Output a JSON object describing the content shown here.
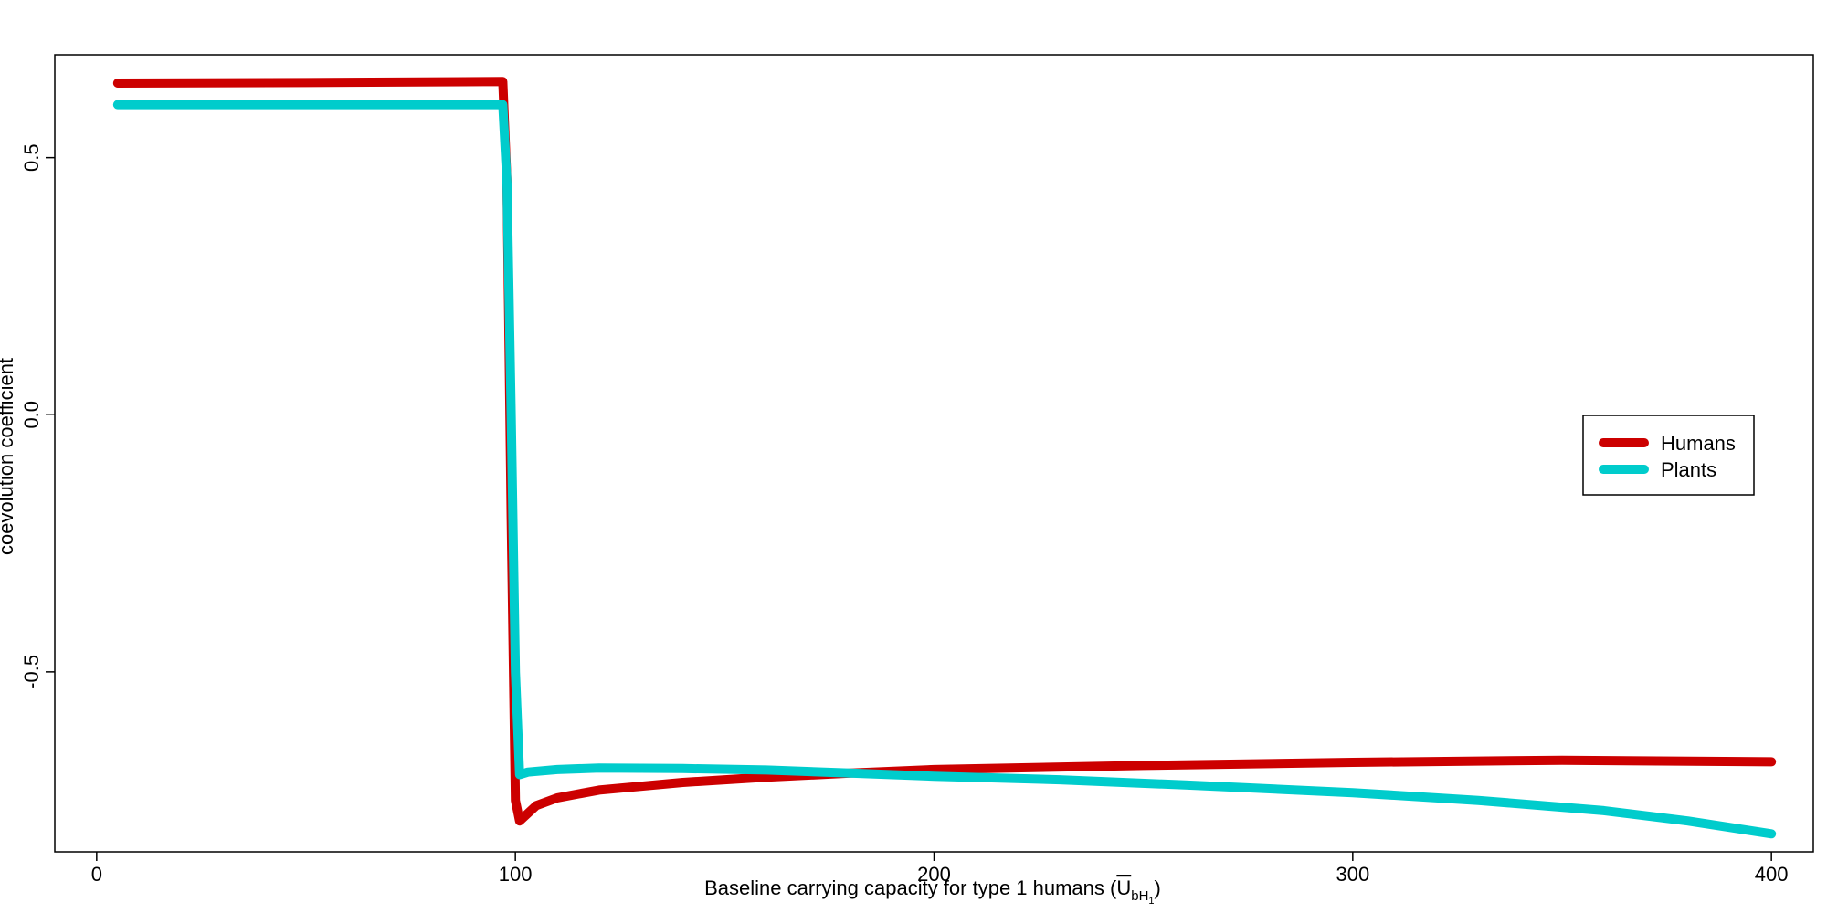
{
  "chart_data": {
    "type": "line",
    "title": "",
    "xlabel_text": "Baseline carrying capacity for type 1 humans (",
    "xlabel_symbol": "U",
    "xlabel_sub1": "bH",
    "xlabel_sub2": "1",
    "xlabel_close": ")",
    "ylabel": "coevolution coefficient",
    "xlim": [
      -10,
      410
    ],
    "ylim": [
      -0.85,
      0.7
    ],
    "xticks": [
      0,
      100,
      200,
      300,
      400
    ],
    "xtick_labels": [
      "0",
      "100",
      "200",
      "300",
      "400"
    ],
    "yticks": [
      -0.5,
      0.0,
      0.5
    ],
    "ytick_labels": [
      "-0.5",
      "0.0",
      "0.5"
    ],
    "legend_position": "center-right",
    "series": [
      {
        "name": "Humans",
        "color": "#CC0000",
        "points": [
          [
            5,
            0.645
          ],
          [
            50,
            0.646
          ],
          [
            97,
            0.648
          ],
          [
            98,
            0.45
          ],
          [
            99,
            -0.2
          ],
          [
            100,
            -0.75
          ],
          [
            101,
            -0.79
          ],
          [
            105,
            -0.76
          ],
          [
            110,
            -0.745
          ],
          [
            120,
            -0.73
          ],
          [
            140,
            -0.715
          ],
          [
            160,
            -0.705
          ],
          [
            180,
            -0.697
          ],
          [
            200,
            -0.69
          ],
          [
            250,
            -0.682
          ],
          [
            300,
            -0.676
          ],
          [
            350,
            -0.672
          ],
          [
            400,
            -0.675
          ]
        ]
      },
      {
        "name": "Plants",
        "color": "#00CCCC",
        "points": [
          [
            5,
            0.603
          ],
          [
            50,
            0.603
          ],
          [
            97,
            0.603
          ],
          [
            98,
            0.45
          ],
          [
            99,
            0.0
          ],
          [
            100,
            -0.5
          ],
          [
            101,
            -0.7
          ],
          [
            103,
            -0.695
          ],
          [
            110,
            -0.69
          ],
          [
            120,
            -0.687
          ],
          [
            140,
            -0.688
          ],
          [
            160,
            -0.691
          ],
          [
            180,
            -0.697
          ],
          [
            200,
            -0.703
          ],
          [
            230,
            -0.71
          ],
          [
            260,
            -0.72
          ],
          [
            300,
            -0.735
          ],
          [
            330,
            -0.75
          ],
          [
            360,
            -0.77
          ],
          [
            380,
            -0.79
          ],
          [
            400,
            -0.815
          ]
        ]
      }
    ]
  }
}
